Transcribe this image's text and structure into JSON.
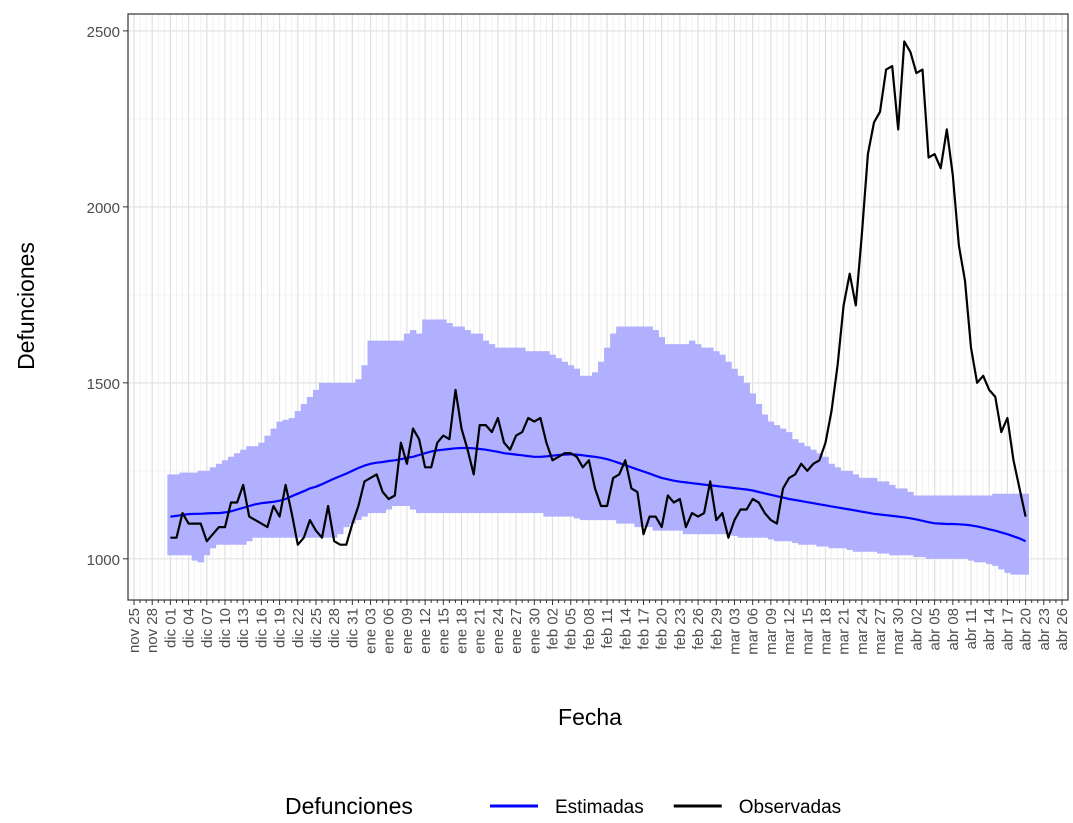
{
  "chart_data": {
    "type": "line",
    "x_label": "Fecha",
    "y_label": "Defunciones",
    "legend_title": "Defunciones",
    "legend_position": "bottom",
    "grid": true,
    "ylim": [
      883,
      2548
    ],
    "yticks": [
      1000,
      1500,
      2000,
      2500
    ],
    "categories": [
      "nov 25",
      null,
      null,
      "nov 28",
      null,
      null,
      "dic 01",
      null,
      null,
      "dic 04",
      null,
      null,
      "dic 07",
      null,
      null,
      "dic 10",
      null,
      null,
      "dic 13",
      null,
      null,
      "dic 16",
      null,
      null,
      "dic 19",
      null,
      null,
      "dic 22",
      null,
      null,
      "dic 25",
      null,
      null,
      "dic 28",
      null,
      null,
      "dic 31",
      null,
      null,
      "ene 03",
      null,
      null,
      "ene 06",
      null,
      null,
      "ene 09",
      null,
      null,
      "ene 12",
      null,
      null,
      "ene 15",
      null,
      null,
      "ene 18",
      null,
      null,
      "ene 21",
      null,
      null,
      "ene 24",
      null,
      null,
      "ene 27",
      null,
      null,
      "ene 30",
      null,
      null,
      "feb 02",
      null,
      null,
      "feb 05",
      null,
      null,
      "feb 08",
      null,
      null,
      "feb 11",
      null,
      null,
      "feb 14",
      null,
      null,
      "feb 17",
      null,
      null,
      "feb 20",
      null,
      null,
      "feb 23",
      null,
      null,
      "feb 26",
      null,
      null,
      "feb 29",
      null,
      null,
      "mar 03",
      null,
      null,
      "mar 06",
      null,
      null,
      "mar 09",
      null,
      null,
      "mar 12",
      null,
      null,
      "mar 15",
      null,
      null,
      "mar 18",
      null,
      null,
      "mar 21",
      null,
      null,
      "mar 24",
      null,
      null,
      "mar 27",
      null,
      null,
      "mar 30",
      null,
      null,
      "abr 02",
      null,
      null,
      "abr 05",
      null,
      null,
      "abr 08",
      null,
      null,
      "abr 11",
      null,
      null,
      "abr 14",
      null,
      null,
      "abr 17",
      null,
      null,
      "abr 20",
      null,
      null,
      "abr 23",
      null,
      null,
      "abr 26"
    ],
    "series": [
      {
        "name": "Estimadas",
        "color": "#0000ff",
        "band_color": "#b0b0ff",
        "values": [
          null,
          null,
          null,
          null,
          null,
          null,
          1120,
          1122,
          1125,
          1127,
          1128,
          1128,
          1129,
          1130,
          1130,
          1132,
          1135,
          1140,
          1145,
          1150,
          1155,
          1158,
          1160,
          1162,
          1165,
          1170,
          1178,
          1185,
          1192,
          1200,
          1205,
          1212,
          1220,
          1228,
          1235,
          1242,
          1250,
          1258,
          1265,
          1270,
          1273,
          1275,
          1278,
          1280,
          1283,
          1287,
          1290,
          1295,
          1300,
          1305,
          1308,
          1310,
          1312,
          1314,
          1315,
          1315,
          1314,
          1312,
          1310,
          1307,
          1304,
          1300,
          1298,
          1296,
          1294,
          1292,
          1290,
          1290,
          1291,
          1293,
          1295,
          1296,
          1297,
          1296,
          1294,
          1292,
          1290,
          1287,
          1283,
          1278,
          1272,
          1266,
          1260,
          1254,
          1248,
          1242,
          1236,
          1230,
          1226,
          1222,
          1219,
          1217,
          1215,
          1213,
          1211,
          1209,
          1207,
          1205,
          1203,
          1201,
          1199,
          1197,
          1194,
          1190,
          1186,
          1182,
          1178,
          1174,
          1170,
          1167,
          1164,
          1161,
          1158,
          1155,
          1152,
          1149,
          1146,
          1143,
          1140,
          1137,
          1134,
          1131,
          1128,
          1126,
          1124,
          1122,
          1120,
          1118,
          1115,
          1112,
          1108,
          1104,
          1101,
          1100,
          1099,
          1099,
          1098,
          1097,
          1095,
          1092,
          1088,
          1084,
          1080,
          1075,
          1070,
          1064,
          1058,
          1050,
          null,
          null,
          null,
          null,
          null,
          null
        ],
        "lower": [
          null,
          null,
          null,
          null,
          null,
          null,
          1010,
          1010,
          1010,
          1010,
          995,
          990,
          1010,
          1030,
          1040,
          1040,
          1040,
          1040,
          1040,
          1050,
          1060,
          1060,
          1060,
          1060,
          1060,
          1060,
          1060,
          1060,
          1060,
          1060,
          1060,
          1060,
          1060,
          1060,
          1070,
          1090,
          1100,
          1110,
          1120,
          1130,
          1130,
          1130,
          1140,
          1150,
          1150,
          1150,
          1140,
          1130,
          1130,
          1130,
          1130,
          1130,
          1130,
          1130,
          1130,
          1130,
          1130,
          1130,
          1130,
          1130,
          1130,
          1130,
          1130,
          1130,
          1130,
          1130,
          1130,
          1130,
          1120,
          1120,
          1120,
          1120,
          1120,
          1115,
          1110,
          1110,
          1110,
          1110,
          1110,
          1110,
          1100,
          1100,
          1100,
          1090,
          1090,
          1090,
          1080,
          1080,
          1080,
          1080,
          1080,
          1070,
          1070,
          1070,
          1070,
          1070,
          1070,
          1070,
          1070,
          1065,
          1060,
          1060,
          1060,
          1060,
          1060,
          1055,
          1050,
          1050,
          1050,
          1045,
          1040,
          1040,
          1040,
          1035,
          1035,
          1030,
          1030,
          1030,
          1025,
          1020,
          1020,
          1020,
          1020,
          1015,
          1015,
          1010,
          1010,
          1010,
          1010,
          1005,
          1005,
          1000,
          1000,
          1000,
          1000,
          1000,
          1000,
          1000,
          995,
          990,
          990,
          985,
          980,
          970,
          960,
          955,
          955,
          955,
          null,
          null,
          null,
          null,
          null,
          null
        ],
        "upper": [
          null,
          null,
          null,
          null,
          null,
          null,
          1240,
          1240,
          1245,
          1245,
          1245,
          1250,
          1250,
          1260,
          1270,
          1280,
          1290,
          1300,
          1310,
          1320,
          1320,
          1330,
          1350,
          1370,
          1390,
          1395,
          1400,
          1420,
          1440,
          1460,
          1480,
          1500,
          1500,
          1500,
          1500,
          1500,
          1500,
          1510,
          1550,
          1620,
          1620,
          1620,
          1620,
          1620,
          1620,
          1640,
          1650,
          1640,
          1680,
          1680,
          1680,
          1680,
          1670,
          1660,
          1660,
          1650,
          1640,
          1640,
          1620,
          1610,
          1600,
          1600,
          1600,
          1600,
          1600,
          1590,
          1590,
          1590,
          1590,
          1580,
          1570,
          1560,
          1550,
          1540,
          1520,
          1520,
          1530,
          1560,
          1600,
          1640,
          1660,
          1660,
          1660,
          1660,
          1660,
          1660,
          1650,
          1630,
          1610,
          1610,
          1610,
          1610,
          1620,
          1610,
          1600,
          1600,
          1590,
          1580,
          1560,
          1540,
          1520,
          1500,
          1470,
          1440,
          1410,
          1390,
          1380,
          1370,
          1360,
          1340,
          1330,
          1320,
          1310,
          1300,
          1290,
          1270,
          1260,
          1250,
          1250,
          1240,
          1230,
          1230,
          1230,
          1220,
          1220,
          1210,
          1200,
          1200,
          1190,
          1180,
          1180,
          1180,
          1180,
          1180,
          1180,
          1180,
          1180,
          1180,
          1180,
          1180,
          1180,
          1180,
          1185,
          1185,
          1185,
          1185,
          1185,
          1185,
          null,
          null,
          null,
          null,
          null,
          null
        ]
      },
      {
        "name": "Observadas",
        "color": "#000000",
        "values": [
          null,
          null,
          null,
          null,
          null,
          null,
          1060,
          1060,
          1130,
          1100,
          1100,
          1100,
          1050,
          1070,
          1090,
          1090,
          1160,
          1160,
          1210,
          1120,
          1110,
          1100,
          1090,
          1150,
          1120,
          1210,
          1130,
          1040,
          1060,
          1110,
          1080,
          1060,
          1150,
          1050,
          1040,
          1040,
          1100,
          1150,
          1220,
          1230,
          1240,
          1190,
          1170,
          1180,
          1330,
          1270,
          1370,
          1340,
          1260,
          1260,
          1330,
          1350,
          1340,
          1480,
          1370,
          1310,
          1240,
          1380,
          1380,
          1360,
          1400,
          1330,
          1310,
          1350,
          1360,
          1400,
          1390,
          1400,
          1330,
          1280,
          1290,
          1300,
          1300,
          1290,
          1260,
          1280,
          1200,
          1150,
          1150,
          1230,
          1240,
          1280,
          1200,
          1190,
          1070,
          1120,
          1120,
          1090,
          1180,
          1160,
          1170,
          1090,
          1130,
          1120,
          1130,
          1220,
          1110,
          1130,
          1060,
          1110,
          1140,
          1140,
          1170,
          1160,
          1130,
          1110,
          1100,
          1200,
          1230,
          1240,
          1270,
          1250,
          1270,
          1280,
          1330,
          1420,
          1550,
          1720,
          1810,
          1720,
          1920,
          2150,
          2240,
          2270,
          2390,
          2400,
          2220,
          2470,
          2440,
          2380,
          2390,
          2140,
          2150,
          2110,
          2220,
          2090,
          1890,
          1790,
          1600,
          1500,
          1520,
          1480,
          1460,
          1360,
          1400,
          1280,
          1200,
          1120,
          null,
          null,
          null,
          null,
          null,
          null
        ]
      }
    ]
  }
}
